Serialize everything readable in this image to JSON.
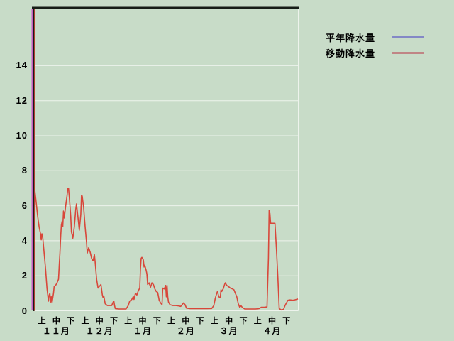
{
  "legend": {
    "items": [
      {
        "label": "平年降水量",
        "color": "#8488c6"
      },
      {
        "label": "移動降水量",
        "color": "#c08585"
      }
    ]
  },
  "colors": {
    "background": "#c8dcc8",
    "grid": "#edf3ec",
    "frame": "#161d16",
    "offscale_spike": "#c55ec5",
    "normal_series": "#8488c6",
    "moving_series": "#d8473a",
    "text": "#000000"
  },
  "chart_data": {
    "type": "line",
    "title": "",
    "xlabel": "",
    "ylabel": "",
    "grid": true,
    "legend_position": "top-right, outside plot",
    "y_axis": {
      "ticks": [
        0,
        2,
        4,
        6,
        8,
        10,
        12,
        14
      ],
      "min": 0,
      "visible_top": 17.3
    },
    "x_axis": {
      "months": [
        "１１月",
        "１２月",
        "１月",
        "２月",
        "３月",
        "４月"
      ],
      "period_labels": [
        "上",
        "中",
        "下"
      ],
      "unit": "10-day periods (旬), Nov 1 = day 0, 18 periods total"
    },
    "series": [
      {
        "name": "平年降水量",
        "color": "#8488c6",
        "offscale_spike_at_start": true,
        "note": "visible only as a vertical off-scale line at the left edge",
        "points": []
      },
      {
        "name": "移動降水量",
        "color": "#d8473a",
        "offscale_spike_at_start": true,
        "points": [
          [
            0,
            6.9
          ],
          [
            1,
            6.2
          ],
          [
            2,
            5.4
          ],
          [
            3,
            4.8
          ],
          [
            4,
            4.4
          ],
          [
            4.5,
            4.05
          ],
          [
            5,
            4.4
          ],
          [
            5.5,
            4.2
          ],
          [
            6.5,
            3.3
          ],
          [
            7.5,
            2.4
          ],
          [
            8.5,
            1.3
          ],
          [
            9.5,
            0.55
          ],
          [
            10,
            0.9
          ],
          [
            10.5,
            1.0
          ],
          [
            11,
            0.5
          ],
          [
            11.5,
            0.8
          ],
          [
            12,
            0.45
          ],
          [
            13,
            1.0
          ],
          [
            13.5,
            1.4
          ],
          [
            14.5,
            1.45
          ],
          [
            15.5,
            1.6
          ],
          [
            16.5,
            1.8
          ],
          [
            17,
            2.6
          ],
          [
            17.5,
            3.3
          ],
          [
            18,
            4.2
          ],
          [
            18.5,
            4.9
          ],
          [
            19,
            5.1
          ],
          [
            19.5,
            4.8
          ],
          [
            20,
            5.7
          ],
          [
            20.5,
            5.3
          ],
          [
            21.5,
            6.0
          ],
          [
            22.5,
            6.6
          ],
          [
            23,
            7.0
          ],
          [
            23.5,
            7.0
          ],
          [
            24,
            6.5
          ],
          [
            25,
            5.4
          ],
          [
            25.5,
            4.5
          ],
          [
            26.5,
            4.15
          ],
          [
            27.5,
            4.8
          ],
          [
            28.5,
            5.8
          ],
          [
            29,
            6.1
          ],
          [
            30,
            5.4
          ],
          [
            31,
            4.6
          ],
          [
            32,
            5.5
          ],
          [
            32.5,
            6.6
          ],
          [
            33,
            6.55
          ],
          [
            34,
            5.9
          ],
          [
            35,
            4.8
          ],
          [
            36,
            3.9
          ],
          [
            36.5,
            3.3
          ],
          [
            37.5,
            3.6
          ],
          [
            38.5,
            3.35
          ],
          [
            39.5,
            3.0
          ],
          [
            40.5,
            2.85
          ],
          [
            41.5,
            3.2
          ],
          [
            42,
            2.8
          ],
          [
            43,
            1.8
          ],
          [
            44,
            1.3
          ],
          [
            45,
            1.4
          ],
          [
            46,
            1.5
          ],
          [
            46.5,
            1.2
          ],
          [
            47,
            0.9
          ],
          [
            47.5,
            0.75
          ],
          [
            48,
            0.85
          ],
          [
            49,
            0.4
          ],
          [
            50.5,
            0.3
          ],
          [
            52,
            0.3
          ],
          [
            53.5,
            0.3
          ],
          [
            54.5,
            0.5
          ],
          [
            55,
            0.55
          ],
          [
            55.5,
            0.3
          ],
          [
            56,
            0.12
          ],
          [
            58.5,
            0.1
          ],
          [
            61,
            0.1
          ],
          [
            63.5,
            0.1
          ],
          [
            65,
            0.3
          ],
          [
            66,
            0.55
          ],
          [
            67.5,
            0.65
          ],
          [
            68.5,
            0.82
          ],
          [
            69,
            0.65
          ],
          [
            70,
            1.0
          ],
          [
            71,
            0.9
          ],
          [
            72,
            1.15
          ],
          [
            73,
            1.3
          ],
          [
            73.5,
            2.4
          ],
          [
            74,
            3.0
          ],
          [
            74.5,
            3.05
          ],
          [
            75.5,
            2.9
          ],
          [
            76,
            2.5
          ],
          [
            76.5,
            2.6
          ],
          [
            77.5,
            2.3
          ],
          [
            78,
            2.1
          ],
          [
            78.5,
            1.5
          ],
          [
            79.5,
            1.6
          ],
          [
            80.5,
            1.35
          ],
          [
            81.5,
            1.6
          ],
          [
            82.5,
            1.5
          ],
          [
            83.5,
            1.25
          ],
          [
            84.5,
            1.1
          ],
          [
            85.5,
            1.05
          ],
          [
            86.5,
            0.6
          ],
          [
            87.5,
            0.45
          ],
          [
            88.5,
            0.35
          ],
          [
            89,
            1.3
          ],
          [
            90,
            1.25
          ],
          [
            91,
            1.45
          ],
          [
            91.5,
            0.8
          ],
          [
            92,
            1.45
          ],
          [
            92.5,
            0.8
          ],
          [
            93,
            0.5
          ],
          [
            94,
            0.35
          ],
          [
            96,
            0.3
          ],
          [
            98,
            0.3
          ],
          [
            100,
            0.28
          ],
          [
            101.5,
            0.25
          ],
          [
            102.5,
            0.35
          ],
          [
            103.5,
            0.45
          ],
          [
            104.5,
            0.35
          ],
          [
            105.5,
            0.15
          ],
          [
            108,
            0.12
          ],
          [
            111,
            0.12
          ],
          [
            114,
            0.12
          ],
          [
            117,
            0.12
          ],
          [
            120,
            0.12
          ],
          [
            123,
            0.13
          ],
          [
            124.5,
            0.3
          ],
          [
            125.5,
            0.7
          ],
          [
            126.5,
            1.0
          ],
          [
            127,
            1.1
          ],
          [
            128,
            0.8
          ],
          [
            129,
            0.75
          ],
          [
            129.5,
            1.2
          ],
          [
            130,
            1.1
          ],
          [
            131,
            1.25
          ],
          [
            132,
            1.5
          ],
          [
            132.5,
            1.6
          ],
          [
            133.5,
            1.45
          ],
          [
            134.5,
            1.4
          ],
          [
            136,
            1.3
          ],
          [
            137.5,
            1.25
          ],
          [
            138.5,
            1.2
          ],
          [
            139.5,
            1.0
          ],
          [
            140.5,
            0.8
          ],
          [
            141.5,
            0.4
          ],
          [
            142.5,
            0.2
          ],
          [
            143.5,
            0.28
          ],
          [
            144.5,
            0.18
          ],
          [
            146,
            0.1
          ],
          [
            148.5,
            0.1
          ],
          [
            151,
            0.1
          ],
          [
            153.5,
            0.1
          ],
          [
            156,
            0.12
          ],
          [
            157.5,
            0.2
          ],
          [
            159.5,
            0.2
          ],
          [
            161.5,
            0.22
          ],
          [
            162.5,
            3.0
          ],
          [
            163,
            5.75
          ],
          [
            163.5,
            5.55
          ],
          [
            164,
            5.0
          ],
          [
            165.5,
            5.0
          ],
          [
            167,
            5.0
          ],
          [
            168,
            3.6
          ],
          [
            169,
            2.0
          ],
          [
            170,
            0.12
          ],
          [
            171.5,
            0.05
          ],
          [
            173,
            0.08
          ],
          [
            174,
            0.3
          ],
          [
            175,
            0.45
          ],
          [
            176,
            0.6
          ],
          [
            177.5,
            0.62
          ],
          [
            179.5,
            0.6
          ],
          [
            181,
            0.63
          ],
          [
            182.5,
            0.66
          ],
          [
            183,
            0.68
          ]
        ]
      }
    ]
  }
}
